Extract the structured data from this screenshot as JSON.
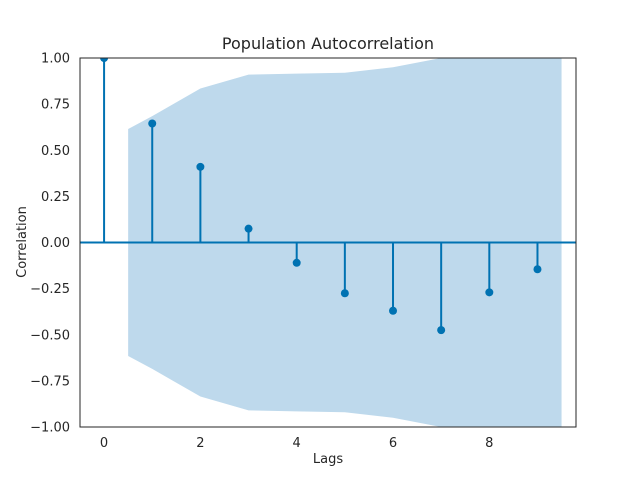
{
  "chart_data": {
    "type": "stem",
    "title": "Population Autocorrelation",
    "xlabel": "Lags",
    "ylabel": "Correlation",
    "xlim": [
      -0.5,
      9.8
    ],
    "ylim": [
      -1.0,
      1.0
    ],
    "xticks": [
      "0",
      "2",
      "4",
      "6",
      "8"
    ],
    "yticks": [
      "1.00",
      "0.75",
      "0.50",
      "0.25",
      "0.00",
      "−0.25",
      "−0.50",
      "−0.75",
      "−1.00"
    ],
    "grid": false,
    "colors": {
      "stem": "#0072b2",
      "confidence_band": "#bed9ec",
      "zero_line": "#0072b2"
    },
    "lags": [
      0,
      1,
      2,
      3,
      4,
      5,
      6,
      7,
      8,
      9
    ],
    "values": [
      1.0,
      0.645,
      0.41,
      0.075,
      -0.11,
      -0.275,
      -0.37,
      -0.475,
      -0.27,
      -0.145
    ],
    "confidence_band": {
      "lags": [
        0.5,
        1,
        2,
        3,
        4,
        5,
        6,
        7,
        8,
        9,
        9.5
      ],
      "upper": [
        0.615,
        0.685,
        0.835,
        0.91,
        0.915,
        0.92,
        0.95,
        1.0,
        1.0,
        1.0,
        1.0
      ],
      "lower": [
        -0.615,
        -0.685,
        -0.835,
        -0.91,
        -0.915,
        -0.92,
        -0.95,
        -1.0,
        -1.0,
        -1.0,
        -1.0
      ]
    }
  }
}
